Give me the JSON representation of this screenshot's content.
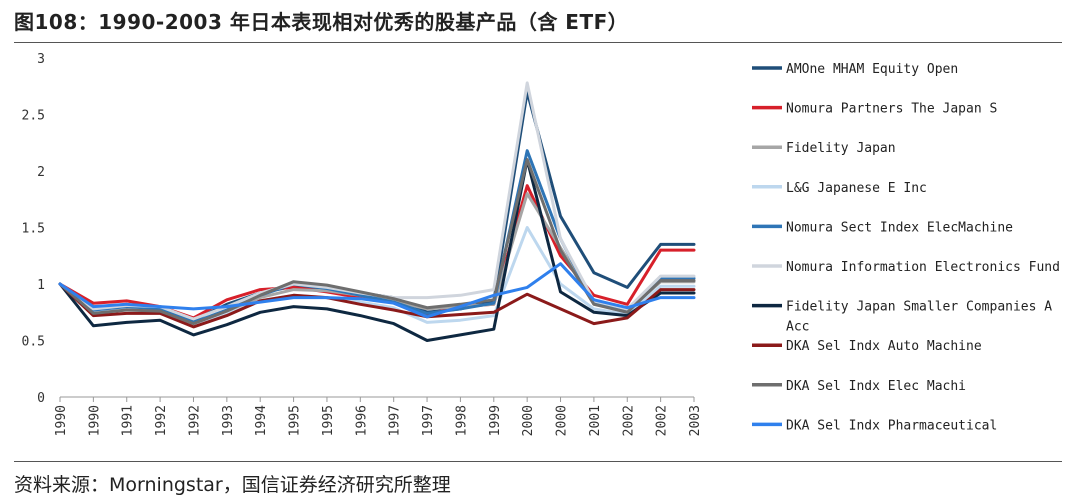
{
  "header": {
    "title": "图108：1990-2003 年日本表现相对优秀的股基产品（含 ETF）"
  },
  "footer": {
    "source": "资料来源：Morningstar，国信证券经济研究所整理"
  },
  "chart_data": {
    "type": "line",
    "title": "图108：1990-2003 年日本表现相对优秀的股基产品（含 ETF）",
    "xlabel": "",
    "ylabel": "",
    "ylim": [
      0,
      3
    ],
    "yticks": [
      "0",
      "0.5",
      "1",
      "1.5",
      "2",
      "2.5",
      "3"
    ],
    "yticks_values": [
      0,
      0.5,
      1,
      1.5,
      2,
      2.5,
      3
    ],
    "categories": [
      "1990",
      "1990",
      "1991",
      "1992",
      "1992",
      "1993",
      "1994",
      "1995",
      "1995",
      "1996",
      "1997",
      "1997",
      "1998",
      "1999",
      "2000",
      "2000",
      "2001",
      "2002",
      "2002",
      "2003"
    ],
    "grid": false,
    "legend_position": "right",
    "series": [
      {
        "name": "AMOne MHAM Equity Open",
        "color": "#1f4e79",
        "width": 3,
        "values": [
          1.0,
          0.78,
          0.8,
          0.8,
          0.68,
          0.82,
          0.92,
          0.98,
          0.95,
          0.92,
          0.88,
          0.75,
          0.78,
          0.85,
          2.7,
          1.6,
          1.1,
          0.97,
          1.35,
          1.35
        ]
      },
      {
        "name": "Nomura Partners The Japan S",
        "color": "#d7202a",
        "width": 3,
        "values": [
          1.0,
          0.83,
          0.85,
          0.8,
          0.7,
          0.86,
          0.95,
          0.97,
          0.93,
          0.88,
          0.85,
          0.73,
          0.8,
          0.82,
          1.87,
          1.25,
          0.9,
          0.82,
          1.3,
          1.3
        ]
      },
      {
        "name": "Fidelity Japan",
        "color": "#a6a6a6",
        "width": 3,
        "values": [
          1.0,
          0.75,
          0.78,
          0.76,
          0.65,
          0.76,
          0.88,
          0.95,
          0.94,
          0.9,
          0.85,
          0.78,
          0.8,
          0.82,
          1.8,
          1.32,
          0.85,
          0.76,
          1.02,
          1.02
        ]
      },
      {
        "name": "L&G Japanese E Inc",
        "color": "#bdd7ee",
        "width": 3,
        "values": [
          1.0,
          0.75,
          0.78,
          0.75,
          0.63,
          0.73,
          0.85,
          0.9,
          0.88,
          0.84,
          0.79,
          0.66,
          0.68,
          0.72,
          1.5,
          1.0,
          0.78,
          0.73,
          0.98,
          0.98
        ]
      },
      {
        "name": "Nomura Sect Index ElecMachine",
        "color": "#2e75b6",
        "width": 3,
        "values": [
          1.0,
          0.77,
          0.8,
          0.78,
          0.66,
          0.77,
          0.9,
          1.0,
          0.96,
          0.9,
          0.84,
          0.74,
          0.78,
          0.83,
          2.18,
          1.4,
          0.83,
          0.75,
          1.05,
          1.05
        ]
      },
      {
        "name": "Nomura Information Electronics Fund",
        "color": "#d0d5dd",
        "width": 3,
        "values": [
          1.0,
          0.78,
          0.81,
          0.8,
          0.69,
          0.8,
          0.92,
          1.0,
          0.97,
          0.92,
          0.88,
          0.88,
          0.9,
          0.95,
          2.78,
          1.4,
          0.85,
          0.78,
          1.07,
          1.07
        ]
      },
      {
        "name": "Fidelity Japan Smaller Companies A Acc",
        "color": "#0e2841",
        "width": 3,
        "values": [
          1.0,
          0.63,
          0.66,
          0.68,
          0.55,
          0.64,
          0.75,
          0.8,
          0.78,
          0.72,
          0.65,
          0.5,
          0.55,
          0.6,
          2.1,
          0.93,
          0.75,
          0.72,
          0.92,
          0.92
        ]
      },
      {
        "name": "DKA Sel Indx Auto Machine",
        "color": "#8b1a1a",
        "width": 3,
        "values": [
          1.0,
          0.72,
          0.74,
          0.74,
          0.62,
          0.72,
          0.85,
          0.9,
          0.88,
          0.82,
          0.77,
          0.71,
          0.73,
          0.75,
          0.91,
          0.78,
          0.65,
          0.7,
          0.95,
          0.95
        ]
      },
      {
        "name": "DKA Sel Indx Elec Machi",
        "color": "#6e6e6e",
        "width": 3,
        "values": [
          1.0,
          0.74,
          0.77,
          0.76,
          0.65,
          0.76,
          0.9,
          1.02,
          0.99,
          0.93,
          0.87,
          0.79,
          0.82,
          0.86,
          2.1,
          1.3,
          0.82,
          0.75,
          1.03,
          1.03
        ]
      },
      {
        "name": "DKA Sel Indx Pharmaceutical",
        "color": "#2f80ed",
        "width": 3,
        "values": [
          1.0,
          0.8,
          0.82,
          0.8,
          0.78,
          0.8,
          0.84,
          0.88,
          0.88,
          0.87,
          0.83,
          0.71,
          0.8,
          0.9,
          0.97,
          1.18,
          0.86,
          0.79,
          0.88,
          0.88
        ]
      }
    ],
    "legend_extra_lines": {
      "6": [
        "Fidelity Japan Smaller Companies A",
        "Acc"
      ]
    }
  }
}
